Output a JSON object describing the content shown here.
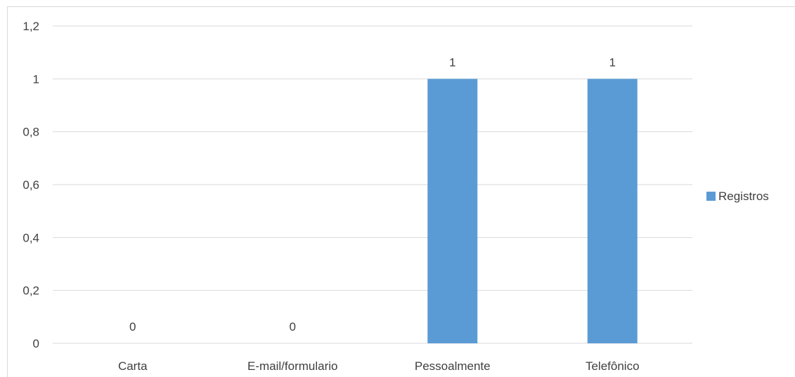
{
  "chart_data": {
    "type": "bar",
    "categories": [
      "Carta",
      "E-mail/formulario",
      "Pessoalmente",
      "Telefônico"
    ],
    "series": [
      {
        "name": "Registros",
        "values": [
          0,
          0,
          1,
          1
        ]
      }
    ],
    "data_labels": [
      "0",
      "0",
      "1",
      "1"
    ],
    "y_ticks": [
      "0",
      "0,2",
      "0,4",
      "0,6",
      "0,8",
      "1",
      "1,2"
    ],
    "y_tick_values": [
      0,
      0.2,
      0.4,
      0.6,
      0.8,
      1,
      1.2
    ],
    "ylim": [
      0,
      1.2
    ],
    "grid": true,
    "legend_position": "right",
    "colors": {
      "bar": "#5b9bd5",
      "grid": "#d9d9d9",
      "text": "#404040"
    }
  }
}
